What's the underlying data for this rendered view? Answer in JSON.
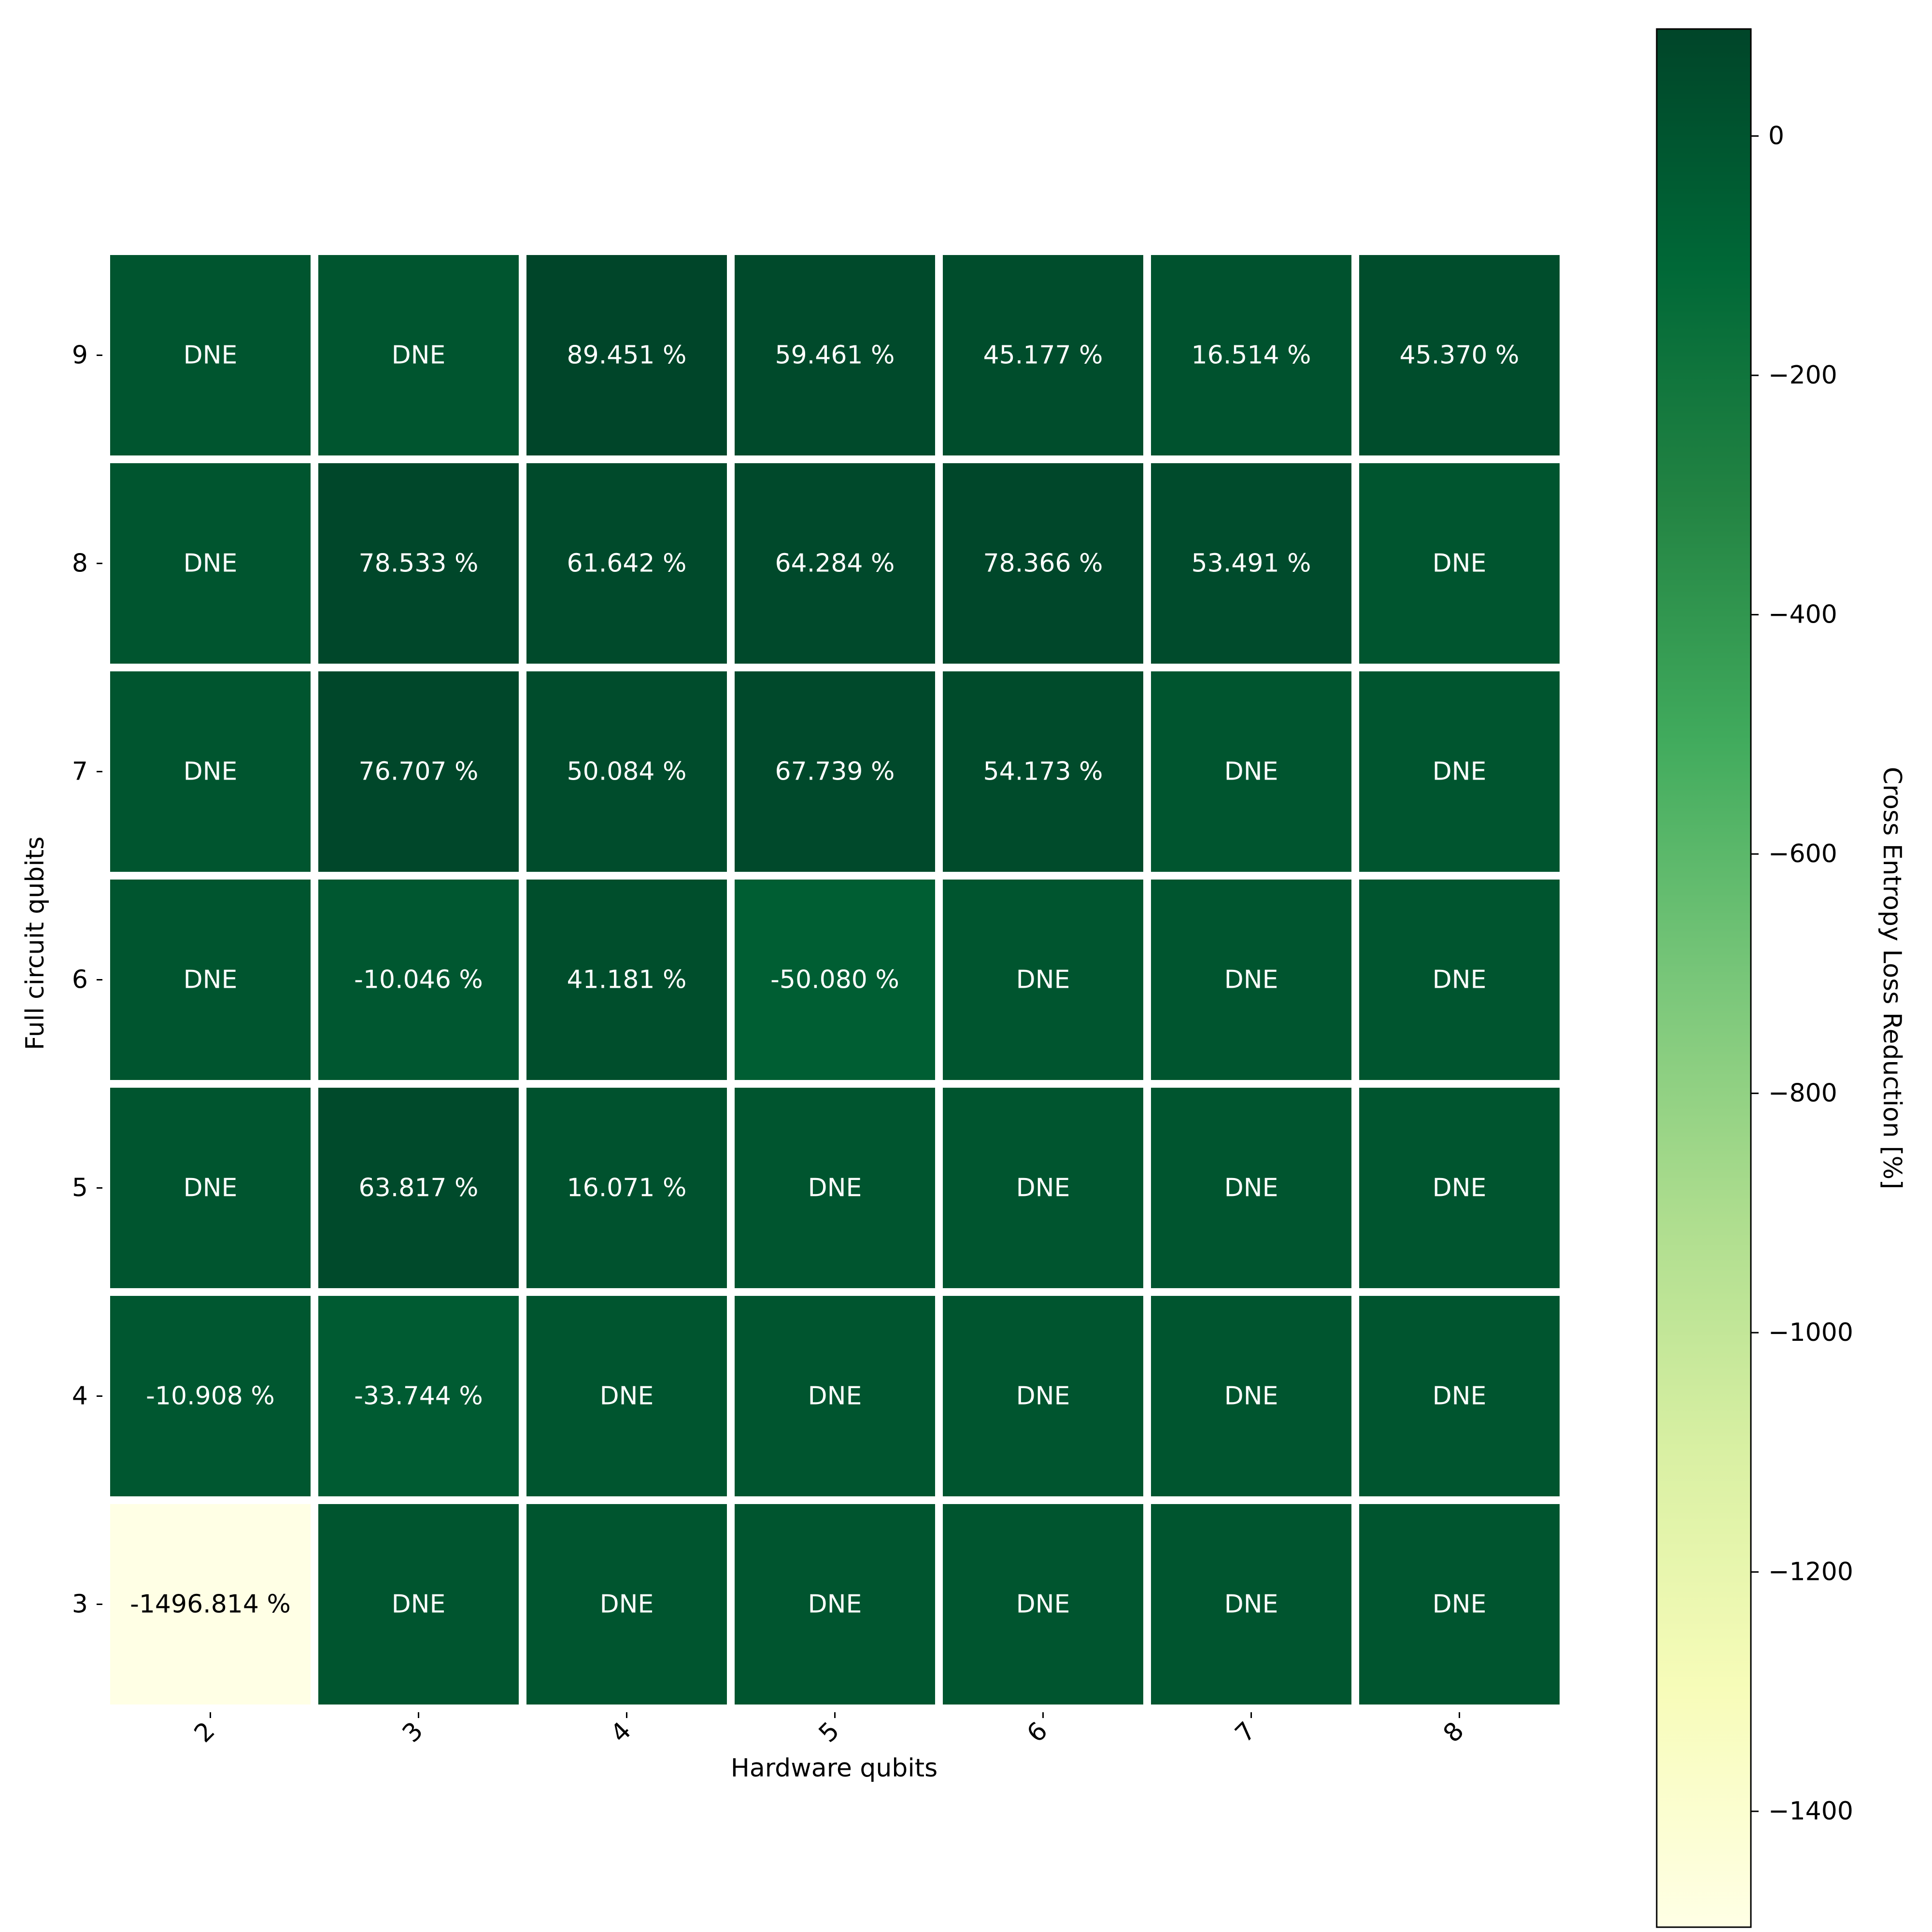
{
  "chart_data": {
    "type": "heatmap",
    "title": "",
    "xlabel": "Hardware qubits",
    "ylabel": "Full circuit qubits",
    "x_categories": [
      "2",
      "3",
      "4",
      "5",
      "6",
      "7",
      "8"
    ],
    "y_categories": [
      "9",
      "8",
      "7",
      "6",
      "5",
      "4",
      "3"
    ],
    "cells": [
      [
        {
          "value": null,
          "label": "DNE"
        },
        {
          "value": null,
          "label": "DNE"
        },
        {
          "value": 89.451,
          "label": "89.451 %"
        },
        {
          "value": 59.461,
          "label": "59.461 %"
        },
        {
          "value": 45.177,
          "label": "45.177 %"
        },
        {
          "value": 16.514,
          "label": "16.514 %"
        },
        {
          "value": 45.37,
          "label": "45.370 %"
        }
      ],
      [
        {
          "value": null,
          "label": "DNE"
        },
        {
          "value": 78.533,
          "label": "78.533 %"
        },
        {
          "value": 61.642,
          "label": "61.642 %"
        },
        {
          "value": 64.284,
          "label": "64.284 %"
        },
        {
          "value": 78.366,
          "label": "78.366 %"
        },
        {
          "value": 53.491,
          "label": "53.491 %"
        },
        {
          "value": null,
          "label": "DNE"
        }
      ],
      [
        {
          "value": null,
          "label": "DNE"
        },
        {
          "value": 76.707,
          "label": "76.707 %"
        },
        {
          "value": 50.084,
          "label": "50.084 %"
        },
        {
          "value": 67.739,
          "label": "67.739 %"
        },
        {
          "value": 54.173,
          "label": "54.173 %"
        },
        {
          "value": null,
          "label": "DNE"
        },
        {
          "value": null,
          "label": "DNE"
        }
      ],
      [
        {
          "value": null,
          "label": "DNE"
        },
        {
          "value": -10.046,
          "label": "-10.046 %"
        },
        {
          "value": 41.181,
          "label": "41.181 %"
        },
        {
          "value": -50.08,
          "label": "-50.080 %"
        },
        {
          "value": null,
          "label": "DNE"
        },
        {
          "value": null,
          "label": "DNE"
        },
        {
          "value": null,
          "label": "DNE"
        }
      ],
      [
        {
          "value": null,
          "label": "DNE"
        },
        {
          "value": 63.817,
          "label": "63.817 %"
        },
        {
          "value": 16.071,
          "label": "16.071 %"
        },
        {
          "value": null,
          "label": "DNE"
        },
        {
          "value": null,
          "label": "DNE"
        },
        {
          "value": null,
          "label": "DNE"
        },
        {
          "value": null,
          "label": "DNE"
        }
      ],
      [
        {
          "value": -10.908,
          "label": "-10.908 %"
        },
        {
          "value": -33.744,
          "label": "-33.744 %"
        },
        {
          "value": null,
          "label": "DNE"
        },
        {
          "value": null,
          "label": "DNE"
        },
        {
          "value": null,
          "label": "DNE"
        },
        {
          "value": null,
          "label": "DNE"
        },
        {
          "value": null,
          "label": "DNE"
        }
      ],
      [
        {
          "value": -1496.814,
          "label": "-1496.814 %"
        },
        {
          "value": null,
          "label": "DNE"
        },
        {
          "value": null,
          "label": "DNE"
        },
        {
          "value": null,
          "label": "DNE"
        },
        {
          "value": null,
          "label": "DNE"
        },
        {
          "value": null,
          "label": "DNE"
        },
        {
          "value": null,
          "label": "DNE"
        }
      ]
    ],
    "dne_value": 0,
    "colorbar": {
      "label": "Cross Entropy Loss Reduction [%]",
      "colormap": "YlGn",
      "range": [
        -1496.814,
        89.451
      ],
      "ticks": [
        0,
        -200,
        -400,
        -600,
        -800,
        -1000,
        -1200,
        -1400
      ],
      "tick_labels": [
        "0",
        "−200",
        "−400",
        "−600",
        "−800",
        "−1000",
        "−1200",
        "−1400"
      ]
    },
    "colormap_stops": [
      "#ffffe5",
      "#f7fcb9",
      "#d9f0a3",
      "#addd8e",
      "#78c679",
      "#41ab5d",
      "#238443",
      "#006837",
      "#004529"
    ],
    "dark_text_color": "#ffffff",
    "light_text_color": "#000000",
    "cell_gap_color": "#ffffff",
    "grid": false,
    "legend": "colorbar-right"
  }
}
